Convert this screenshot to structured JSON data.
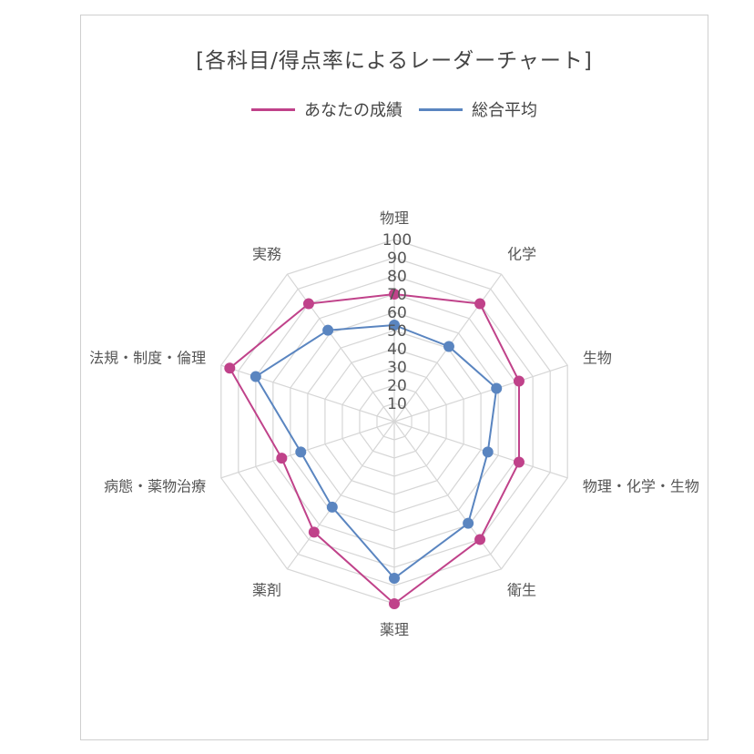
{
  "chart_data": {
    "type": "radar",
    "title": "[各科目/得点率によるレーダーチャート]",
    "axes": [
      "物理",
      "化学",
      "生物",
      "物理・化学・生物",
      "衛生",
      "薬理",
      "薬剤",
      "病態・薬物治療",
      "法規・制度・倫理",
      "実務"
    ],
    "rlim": [
      0,
      100
    ],
    "ticks": [
      10,
      20,
      30,
      40,
      50,
      60,
      70,
      80,
      90,
      100
    ],
    "grid": true,
    "legend_position": "top-center",
    "series": [
      {
        "name": "あなたの成績",
        "color": "#c0428a",
        "values": [
          70,
          80,
          72,
          72,
          80,
          100,
          75,
          65,
          95,
          80
        ]
      },
      {
        "name": "総合平均",
        "color": "#5a85c0",
        "values": [
          53,
          51,
          59,
          54,
          69,
          86,
          58,
          54,
          80,
          62
        ]
      }
    ]
  }
}
